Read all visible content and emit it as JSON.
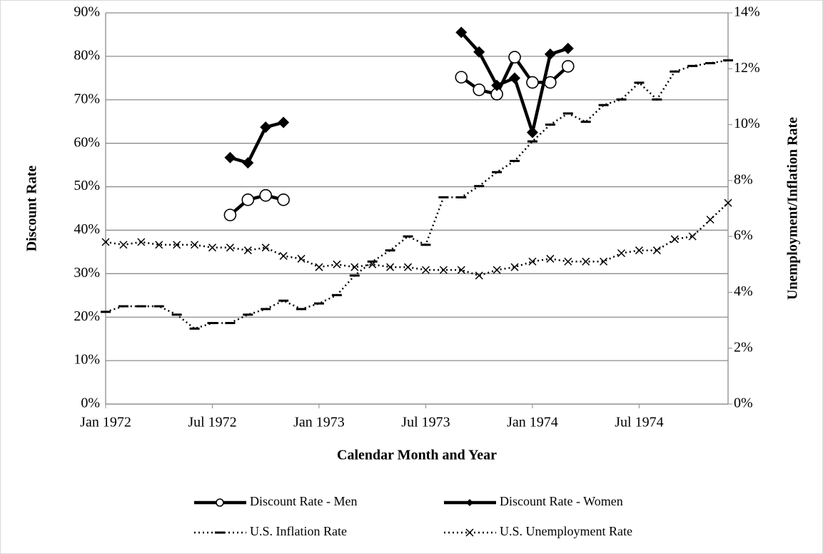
{
  "chart_data": {
    "type": "line",
    "y_label": "Discount Rate",
    "y2_label": "Unemployment/Inflation Rate",
    "x_label": "Calendar Month and Year",
    "categories": [
      "Jan 1972",
      null,
      null,
      null,
      null,
      null,
      "Jul 1972",
      null,
      null,
      null,
      null,
      null,
      "Jan 1973",
      null,
      null,
      null,
      null,
      null,
      "Jul 1973",
      null,
      null,
      null,
      null,
      null,
      "Jan 1974",
      null,
      null,
      null,
      null,
      null,
      "Jul 1974",
      null,
      null,
      null,
      null,
      null
    ],
    "ylim": [
      0,
      90
    ],
    "yticks": [
      {
        "value": 0,
        "label": "0%"
      },
      {
        "value": 10,
        "label": "10%"
      },
      {
        "value": 20,
        "label": "20%"
      },
      {
        "value": 30,
        "label": "30%"
      },
      {
        "value": 40,
        "label": "40%"
      },
      {
        "value": 50,
        "label": "50%"
      },
      {
        "value": 60,
        "label": "60%"
      },
      {
        "value": 70,
        "label": "70%"
      },
      {
        "value": 80,
        "label": "80%"
      },
      {
        "value": 90,
        "label": "90%"
      }
    ],
    "y2lim": [
      0,
      14
    ],
    "y2ticks": [
      {
        "value": 0,
        "label": "0%"
      },
      {
        "value": 2,
        "label": "2%"
      },
      {
        "value": 4,
        "label": "4%"
      },
      {
        "value": 6,
        "label": "6%"
      },
      {
        "value": 8,
        "label": "8%"
      },
      {
        "value": 10,
        "label": "10%"
      },
      {
        "value": 12,
        "label": "12%"
      },
      {
        "value": 14,
        "label": "14%"
      }
    ],
    "grid": true,
    "legend": "bottom",
    "series": [
      {
        "name": "Discount Rate - Men",
        "color": "#000000",
        "line_style": "solid",
        "marker": "circle",
        "values": [
          null,
          null,
          null,
          null,
          null,
          null,
          null,
          43.5,
          47,
          48,
          47,
          null,
          null,
          null,
          null,
          null,
          null,
          null,
          null,
          null,
          75.2,
          72.3,
          71.3,
          79.8,
          74,
          74,
          77.7,
          null,
          null,
          null,
          null,
          null,
          null,
          null,
          null,
          null
        ]
      },
      {
        "name": "Discount Rate - Women",
        "color": "#000000",
        "line_style": "solid",
        "marker": "diamond",
        "values": [
          null,
          null,
          null,
          null,
          null,
          null,
          null,
          56.7,
          55.5,
          63.7,
          64.8,
          null,
          null,
          null,
          null,
          null,
          null,
          null,
          null,
          null,
          85.5,
          81,
          73.3,
          75,
          62.5,
          80.5,
          81.8,
          null,
          null,
          null,
          null,
          null,
          null,
          null,
          null,
          null
        ]
      },
      {
        "name": "U.S. Inflation Rate",
        "color": "#000000",
        "line_style": "dotted",
        "marker": "dash",
        "axis": "y2",
        "values": [
          3.3,
          3.5,
          3.5,
          3.5,
          3.2,
          2.7,
          2.9,
          2.9,
          3.2,
          3.4,
          3.7,
          3.4,
          3.6,
          3.9,
          4.6,
          5.1,
          5.5,
          6.0,
          5.7,
          7.4,
          7.4,
          7.8,
          8.3,
          8.7,
          9.4,
          10.0,
          10.4,
          10.1,
          10.7,
          10.9,
          11.5,
          10.9,
          11.9,
          12.1,
          12.2,
          12.3
        ]
      },
      {
        "name": "U.S. Unemployment Rate",
        "color": "#000000",
        "line_style": "dotted",
        "marker": "x",
        "axis": "y2",
        "values": [
          5.8,
          5.7,
          5.8,
          5.7,
          5.7,
          5.7,
          5.6,
          5.6,
          5.5,
          5.6,
          5.3,
          5.2,
          4.9,
          5.0,
          4.9,
          5.0,
          4.9,
          4.9,
          4.8,
          4.8,
          4.8,
          4.6,
          4.8,
          4.9,
          5.1,
          5.2,
          5.1,
          5.1,
          5.1,
          5.4,
          5.5,
          5.5,
          5.9,
          6.0,
          6.6,
          7.2
        ]
      }
    ]
  }
}
